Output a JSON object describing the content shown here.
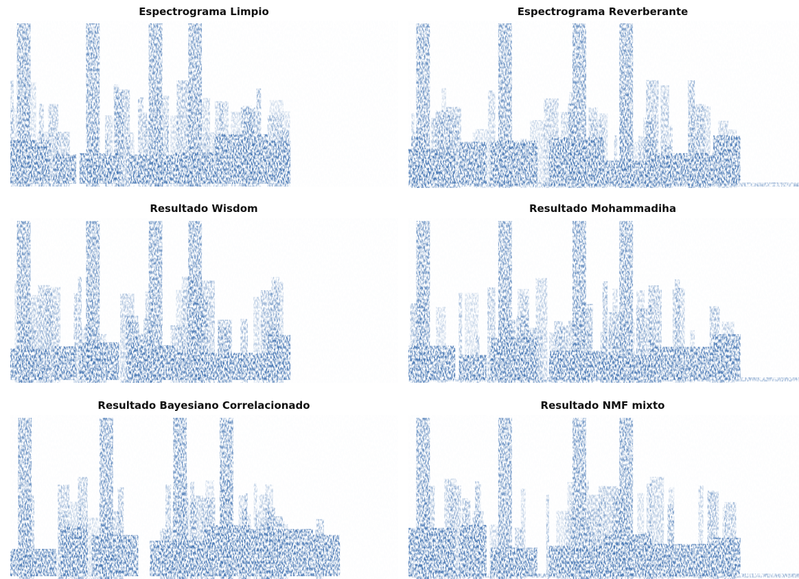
{
  "panels": [
    {
      "title": "Espectrograma Limpio"
    },
    {
      "title": "Espectrograma Reverberante"
    },
    {
      "title": "Resultado Wisdom"
    },
    {
      "title": "Resultado Mohammadiha"
    },
    {
      "title": "Resultado Bayesiano Correlacionado"
    },
    {
      "title": "Resultado NMF mixto"
    }
  ]
}
